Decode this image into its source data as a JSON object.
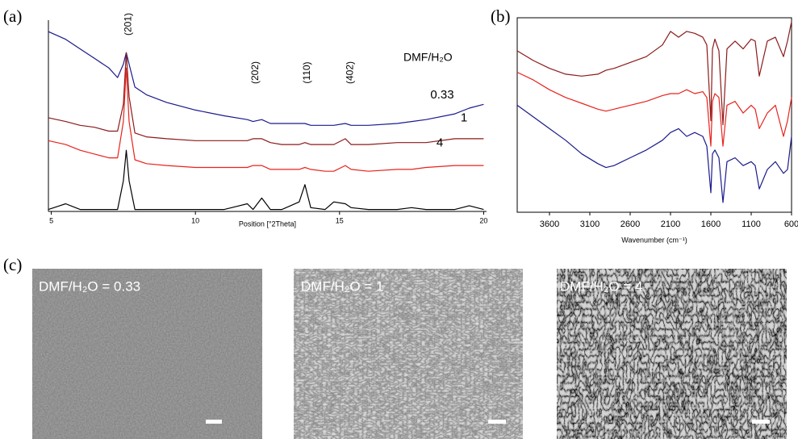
{
  "panel_labels": [
    "(a)",
    "(b)",
    "(c)"
  ],
  "chart_data": [
    {
      "type": "line",
      "xlabel": "Position [°2Theta]",
      "legend_title": "DMF/H₂O",
      "x": [
        4.9,
        5.5,
        6,
        6.5,
        7,
        7.3,
        7.5,
        7.6,
        7.7,
        7.9,
        8.3,
        9,
        10,
        11,
        11.8,
        12,
        12.3,
        12.6,
        13,
        13.6,
        13.8,
        14,
        14.5,
        14.8,
        15.2,
        15.4,
        16,
        17,
        17.5,
        18,
        19,
        19.5,
        20
      ],
      "xlim": [
        4.9,
        20.1
      ],
      "xticks": [
        5,
        10,
        15,
        20
      ],
      "ylim": [
        0,
        100
      ],
      "annotations": [
        {
          "text": "(201)",
          "x": 7.6
        },
        {
          "text": "(202)",
          "x": 12
        },
        {
          "text": "(110)",
          "x": 13.8
        },
        {
          "text": "(402)",
          "x": 15.3
        }
      ],
      "series": [
        {
          "name": "0.33",
          "color": "#1a1a8c",
          "values": [
            94,
            90,
            85,
            80,
            75,
            70,
            77,
            83,
            77,
            65,
            61,
            57,
            53,
            50,
            48,
            47,
            48,
            46,
            46,
            46,
            46,
            45,
            45,
            45,
            46,
            45,
            45,
            46,
            47,
            48,
            51,
            54,
            56
          ]
        },
        {
          "name": "1",
          "color": "#8b1a1a",
          "values": [
            49,
            47,
            45,
            44,
            42,
            42,
            56,
            83,
            60,
            41,
            39,
            38,
            37,
            37,
            37,
            38,
            38,
            36,
            35,
            35,
            36,
            35,
            35,
            35,
            38,
            35,
            35,
            36,
            36,
            36,
            38,
            38,
            38
          ]
        },
        {
          "name": "4",
          "color": "#e8231c",
          "values": [
            37,
            35,
            32,
            30,
            28,
            28,
            47,
            75,
            47,
            27,
            25,
            24,
            23,
            23,
            23,
            24,
            24,
            22,
            22,
            22,
            23,
            22,
            21,
            21,
            24,
            22,
            21,
            22,
            22,
            23,
            24,
            24,
            24
          ]
        },
        {
          "color": "#000000",
          "values": [
            1,
            4,
            1,
            1,
            1,
            1,
            16,
            32,
            16,
            1,
            1,
            1,
            1,
            1,
            4,
            1,
            7,
            1,
            1,
            5,
            14,
            2,
            1,
            5,
            4,
            2,
            1,
            1,
            2,
            1,
            1,
            3,
            1
          ]
        }
      ]
    },
    {
      "type": "line",
      "xlabel": "Wavenumber (cm⁻¹)",
      "x": [
        4000,
        3800,
        3600,
        3400,
        3200,
        3000,
        2900,
        2800,
        2600,
        2400,
        2200,
        2100,
        2000,
        1900,
        1800,
        1700,
        1650,
        1600,
        1580,
        1550,
        1500,
        1450,
        1400,
        1300,
        1200,
        1100,
        1050,
        1000,
        900,
        800,
        700,
        650,
        600
      ],
      "xlim": [
        4000,
        600
      ],
      "xticks": [
        3600,
        3100,
        2600,
        2100,
        1600,
        1100,
        600
      ],
      "ylim": [
        0,
        100
      ],
      "series": [
        {
          "color": "#8b1a1a",
          "values": [
            83,
            78,
            74,
            71,
            70,
            71,
            73,
            74,
            77,
            80,
            86,
            93,
            90,
            93,
            92,
            90,
            86,
            47,
            84,
            89,
            83,
            45,
            84,
            88,
            84,
            89,
            88,
            70,
            88,
            90,
            80,
            88,
            98
          ]
        },
        {
          "color": "#e8231c",
          "values": [
            72,
            68,
            63,
            59,
            56,
            53,
            52,
            53,
            55,
            57,
            60,
            61,
            61,
            63,
            61,
            62,
            59,
            34,
            57,
            61,
            59,
            34,
            55,
            57,
            51,
            55,
            53,
            43,
            51,
            55,
            39,
            47,
            59
          ]
        },
        {
          "color": "#1a1a8c",
          "values": [
            55,
            49,
            43,
            37,
            30,
            25,
            23,
            24,
            28,
            32,
            37,
            41,
            43,
            39,
            41,
            39,
            34,
            10,
            30,
            32,
            28,
            5,
            26,
            28,
            24,
            26,
            24,
            12,
            22,
            26,
            20,
            22,
            39
          ]
        }
      ]
    }
  ],
  "images": [
    {
      "label": "DMF/H₂O = 0.33"
    },
    {
      "label": "DMF/H₂O = 1"
    },
    {
      "label": "DMF/H₂O = 4"
    }
  ]
}
